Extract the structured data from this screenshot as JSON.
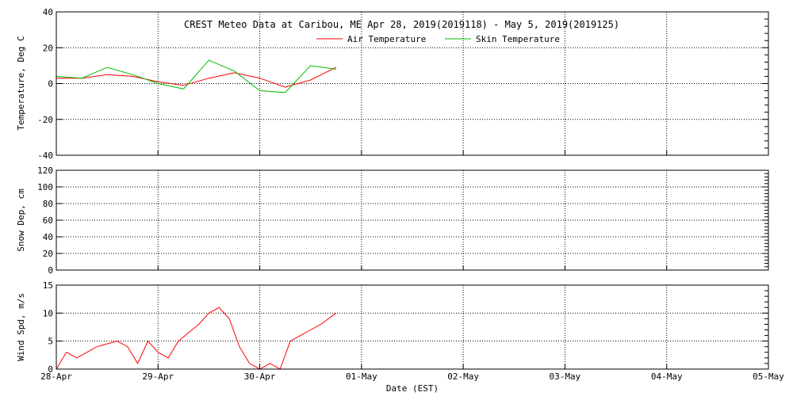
{
  "chart_data": {
    "title": "CREST Meteo Data at Caribou, ME   Apr 28, 2019(2019118) - May  5, 2019(2019125)",
    "xlabel": "Date (EST)",
    "x_ticks": [
      "28-Apr",
      "29-Apr",
      "30-Apr",
      "01-May",
      "02-May",
      "03-May",
      "04-May",
      "05-May"
    ],
    "xlim": [
      0,
      7
    ],
    "x_unit": "days since 28-Apr 00:00 EST",
    "grid": true,
    "panels": [
      {
        "id": "temperature",
        "type": "line",
        "ylabel": "Temperature, Deg C",
        "ylim": [
          -40,
          40
        ],
        "yticks": [
          -40,
          -20,
          0,
          20,
          40
        ],
        "legend_position": "top-center",
        "series": [
          {
            "name": "Air Temperature",
            "color": "#ff0000",
            "x": [
              0,
              0.25,
              0.5,
              0.75,
              1.0,
              1.25,
              1.5,
              1.75,
              2.0,
              2.25,
              2.5,
              2.75
            ],
            "values": [
              3,
              3,
              5,
              4,
              1,
              -1,
              3,
              6,
              3,
              -2,
              2,
              9
            ]
          },
          {
            "name": "Skin Temperature",
            "color": "#00bb00",
            "x": [
              0,
              0.25,
              0.5,
              0.75,
              1.0,
              1.25,
              1.5,
              1.75,
              2.0,
              2.25,
              2.5,
              2.75
            ],
            "values": [
              4,
              3,
              9,
              5,
              0,
              -3,
              13,
              7,
              -4,
              -5,
              10,
              8
            ]
          }
        ]
      },
      {
        "id": "snow-depth",
        "type": "line",
        "ylabel": "Snow Dep, cm",
        "ylim": [
          0,
          120
        ],
        "yticks": [
          0,
          20,
          40,
          60,
          80,
          100,
          120
        ],
        "series": []
      },
      {
        "id": "wind-speed",
        "type": "line",
        "ylabel": "Wind Spd, m/s",
        "ylim": [
          0,
          15
        ],
        "yticks": [
          0,
          5,
          10,
          15
        ],
        "series": [
          {
            "name": "Wind Speed",
            "color": "#ff0000",
            "x": [
              0,
              0.1,
              0.2,
              0.4,
              0.6,
              0.7,
              0.8,
              0.9,
              1.0,
              1.1,
              1.2,
              1.4,
              1.5,
              1.6,
              1.7,
              1.8,
              1.9,
              2.0,
              2.1,
              2.2,
              2.3,
              2.4,
              2.5,
              2.6,
              2.75
            ],
            "values": [
              0,
              3,
              2,
              4,
              5,
              4,
              1,
              5,
              3,
              2,
              5,
              8,
              10,
              11,
              9,
              4,
              1,
              0,
              1,
              0,
              5,
              6,
              7,
              8,
              10
            ]
          }
        ]
      }
    ]
  }
}
